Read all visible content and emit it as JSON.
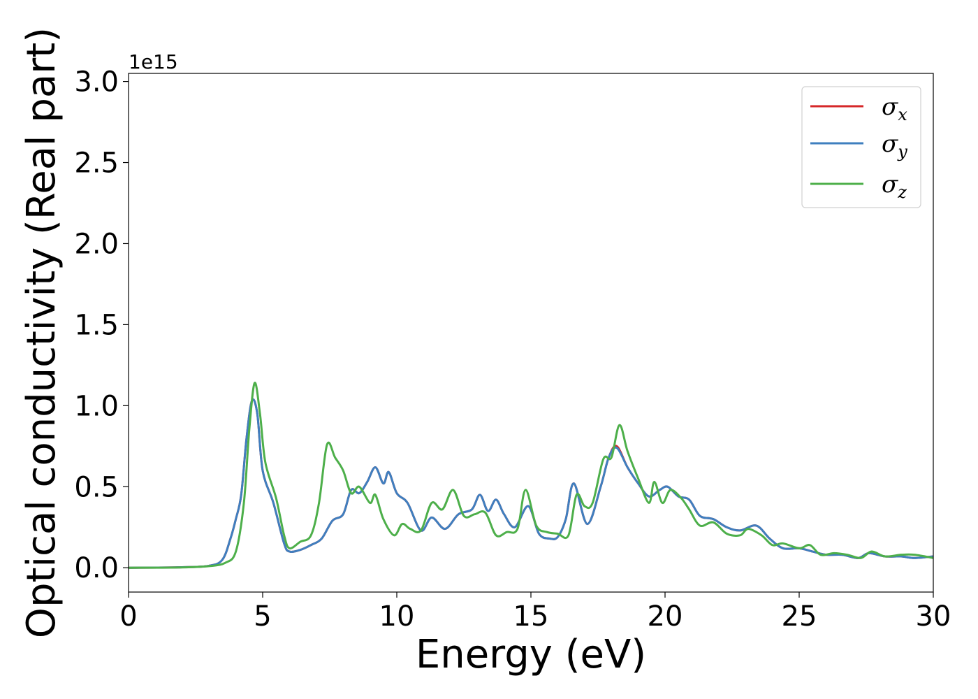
{
  "chart_data": {
    "type": "line",
    "title": "",
    "xlabel": "Energy (eV)",
    "ylabel": "Optical conductivity (Real part)",
    "y_offset_label": "1e15",
    "xlim": [
      0,
      30
    ],
    "ylim": [
      -0.15,
      3.05
    ],
    "xticks": [
      0,
      5,
      10,
      15,
      20,
      25,
      30
    ],
    "xtick_labels": [
      "0",
      "5",
      "10",
      "15",
      "20",
      "25",
      "30"
    ],
    "yticks": [
      0.0,
      0.5,
      1.0,
      1.5,
      2.0,
      2.5,
      3.0
    ],
    "ytick_labels": [
      "0.0",
      "0.5",
      "1.0",
      "1.5",
      "2.0",
      "2.5",
      "3.0"
    ],
    "grid": false,
    "legend_position": "top-right",
    "series": [
      {
        "name_base": "σ",
        "name_sub": "x",
        "color": "#d62728",
        "points": [
          [
            0,
            0
          ],
          [
            2,
            0.003
          ],
          [
            3,
            0.012
          ],
          [
            3.5,
            0.05
          ],
          [
            3.8,
            0.18
          ],
          [
            4.0,
            0.3
          ],
          [
            4.2,
            0.45
          ],
          [
            4.4,
            0.8
          ],
          [
            4.6,
            1.03
          ],
          [
            4.8,
            0.95
          ],
          [
            5.0,
            0.6
          ],
          [
            5.4,
            0.4
          ],
          [
            5.8,
            0.15
          ],
          [
            6.0,
            0.1
          ],
          [
            6.4,
            0.11
          ],
          [
            6.8,
            0.14
          ],
          [
            7.2,
            0.18
          ],
          [
            7.6,
            0.29
          ],
          [
            8.0,
            0.33
          ],
          [
            8.3,
            0.48
          ],
          [
            8.6,
            0.46
          ],
          [
            8.9,
            0.53
          ],
          [
            9.2,
            0.62
          ],
          [
            9.5,
            0.52
          ],
          [
            9.7,
            0.59
          ],
          [
            10.0,
            0.46
          ],
          [
            10.4,
            0.4
          ],
          [
            10.9,
            0.23
          ],
          [
            11.3,
            0.31
          ],
          [
            11.8,
            0.24
          ],
          [
            12.3,
            0.33
          ],
          [
            12.8,
            0.36
          ],
          [
            13.1,
            0.45
          ],
          [
            13.4,
            0.35
          ],
          [
            13.7,
            0.42
          ],
          [
            14.0,
            0.33
          ],
          [
            14.4,
            0.25
          ],
          [
            14.9,
            0.38
          ],
          [
            15.3,
            0.21
          ],
          [
            15.7,
            0.18
          ],
          [
            16.0,
            0.19
          ],
          [
            16.3,
            0.3
          ],
          [
            16.6,
            0.52
          ],
          [
            17.1,
            0.27
          ],
          [
            17.6,
            0.5
          ],
          [
            17.9,
            0.68
          ],
          [
            18.2,
            0.75
          ],
          [
            18.6,
            0.62
          ],
          [
            19.0,
            0.52
          ],
          [
            19.4,
            0.44
          ],
          [
            19.8,
            0.48
          ],
          [
            20.1,
            0.5
          ],
          [
            20.5,
            0.44
          ],
          [
            20.9,
            0.42
          ],
          [
            21.3,
            0.32
          ],
          [
            21.8,
            0.3
          ],
          [
            22.3,
            0.25
          ],
          [
            22.8,
            0.23
          ],
          [
            23.4,
            0.26
          ],
          [
            23.9,
            0.18
          ],
          [
            24.4,
            0.12
          ],
          [
            25.0,
            0.12
          ],
          [
            25.5,
            0.1
          ],
          [
            26.0,
            0.08
          ],
          [
            26.6,
            0.08
          ],
          [
            27.2,
            0.06
          ],
          [
            27.6,
            0.09
          ],
          [
            28.2,
            0.07
          ],
          [
            28.8,
            0.07
          ],
          [
            29.3,
            0.06
          ],
          [
            30,
            0.07
          ]
        ]
      },
      {
        "name_base": "σ",
        "name_sub": "y",
        "color": "#3f7fbf",
        "points": [
          [
            0,
            0
          ],
          [
            2,
            0.003
          ],
          [
            3,
            0.012
          ],
          [
            3.5,
            0.05
          ],
          [
            3.8,
            0.18
          ],
          [
            4.0,
            0.3
          ],
          [
            4.2,
            0.45
          ],
          [
            4.4,
            0.8
          ],
          [
            4.6,
            1.03
          ],
          [
            4.8,
            0.95
          ],
          [
            5.0,
            0.6
          ],
          [
            5.4,
            0.4
          ],
          [
            5.8,
            0.15
          ],
          [
            6.0,
            0.1
          ],
          [
            6.4,
            0.11
          ],
          [
            6.8,
            0.14
          ],
          [
            7.2,
            0.18
          ],
          [
            7.6,
            0.29
          ],
          [
            8.0,
            0.33
          ],
          [
            8.3,
            0.48
          ],
          [
            8.6,
            0.46
          ],
          [
            8.9,
            0.53
          ],
          [
            9.2,
            0.62
          ],
          [
            9.5,
            0.52
          ],
          [
            9.7,
            0.59
          ],
          [
            10.0,
            0.46
          ],
          [
            10.4,
            0.4
          ],
          [
            10.9,
            0.23
          ],
          [
            11.3,
            0.31
          ],
          [
            11.8,
            0.24
          ],
          [
            12.3,
            0.33
          ],
          [
            12.8,
            0.36
          ],
          [
            13.1,
            0.45
          ],
          [
            13.4,
            0.35
          ],
          [
            13.7,
            0.42
          ],
          [
            14.0,
            0.33
          ],
          [
            14.4,
            0.25
          ],
          [
            14.9,
            0.38
          ],
          [
            15.3,
            0.21
          ],
          [
            15.7,
            0.18
          ],
          [
            16.0,
            0.19
          ],
          [
            16.3,
            0.3
          ],
          [
            16.6,
            0.52
          ],
          [
            17.1,
            0.27
          ],
          [
            17.6,
            0.5
          ],
          [
            17.9,
            0.68
          ],
          [
            18.2,
            0.74
          ],
          [
            18.6,
            0.62
          ],
          [
            19.0,
            0.52
          ],
          [
            19.4,
            0.44
          ],
          [
            19.8,
            0.48
          ],
          [
            20.1,
            0.5
          ],
          [
            20.5,
            0.44
          ],
          [
            20.9,
            0.42
          ],
          [
            21.3,
            0.32
          ],
          [
            21.8,
            0.3
          ],
          [
            22.3,
            0.25
          ],
          [
            22.8,
            0.23
          ],
          [
            23.4,
            0.26
          ],
          [
            23.9,
            0.18
          ],
          [
            24.4,
            0.12
          ],
          [
            25.0,
            0.12
          ],
          [
            25.5,
            0.1
          ],
          [
            26.0,
            0.08
          ],
          [
            26.6,
            0.08
          ],
          [
            27.2,
            0.06
          ],
          [
            27.6,
            0.09
          ],
          [
            28.2,
            0.07
          ],
          [
            28.8,
            0.07
          ],
          [
            29.3,
            0.06
          ],
          [
            30,
            0.07
          ]
        ]
      },
      {
        "name_base": "σ",
        "name_sub": "z",
        "color": "#4daf4a",
        "points": [
          [
            0,
            0
          ],
          [
            2,
            0.002
          ],
          [
            3,
            0.01
          ],
          [
            3.6,
            0.03
          ],
          [
            4.0,
            0.1
          ],
          [
            4.3,
            0.4
          ],
          [
            4.5,
            0.85
          ],
          [
            4.7,
            1.14
          ],
          [
            4.9,
            0.95
          ],
          [
            5.1,
            0.65
          ],
          [
            5.5,
            0.43
          ],
          [
            5.8,
            0.2
          ],
          [
            6.0,
            0.12
          ],
          [
            6.4,
            0.16
          ],
          [
            6.8,
            0.2
          ],
          [
            7.1,
            0.4
          ],
          [
            7.4,
            0.76
          ],
          [
            7.7,
            0.68
          ],
          [
            8.0,
            0.6
          ],
          [
            8.3,
            0.46
          ],
          [
            8.6,
            0.5
          ],
          [
            9.0,
            0.4
          ],
          [
            9.2,
            0.45
          ],
          [
            9.5,
            0.3
          ],
          [
            9.9,
            0.2
          ],
          [
            10.2,
            0.27
          ],
          [
            10.5,
            0.24
          ],
          [
            10.9,
            0.23
          ],
          [
            11.3,
            0.4
          ],
          [
            11.7,
            0.36
          ],
          [
            12.1,
            0.48
          ],
          [
            12.5,
            0.32
          ],
          [
            12.9,
            0.33
          ],
          [
            13.3,
            0.34
          ],
          [
            13.7,
            0.2
          ],
          [
            14.1,
            0.22
          ],
          [
            14.5,
            0.24
          ],
          [
            14.8,
            0.48
          ],
          [
            15.2,
            0.26
          ],
          [
            15.6,
            0.22
          ],
          [
            16.0,
            0.21
          ],
          [
            16.4,
            0.2
          ],
          [
            16.7,
            0.45
          ],
          [
            17.0,
            0.38
          ],
          [
            17.3,
            0.4
          ],
          [
            17.7,
            0.67
          ],
          [
            18.0,
            0.68
          ],
          [
            18.3,
            0.88
          ],
          [
            18.6,
            0.72
          ],
          [
            19.0,
            0.55
          ],
          [
            19.4,
            0.4
          ],
          [
            19.6,
            0.53
          ],
          [
            19.9,
            0.4
          ],
          [
            20.2,
            0.48
          ],
          [
            20.6,
            0.43
          ],
          [
            20.9,
            0.36
          ],
          [
            21.3,
            0.26
          ],
          [
            21.8,
            0.28
          ],
          [
            22.3,
            0.21
          ],
          [
            22.8,
            0.2
          ],
          [
            23.1,
            0.24
          ],
          [
            23.6,
            0.2
          ],
          [
            24.0,
            0.14
          ],
          [
            24.4,
            0.15
          ],
          [
            25.0,
            0.12
          ],
          [
            25.4,
            0.14
          ],
          [
            25.8,
            0.08
          ],
          [
            26.3,
            0.09
          ],
          [
            26.8,
            0.08
          ],
          [
            27.3,
            0.06
          ],
          [
            27.7,
            0.1
          ],
          [
            28.2,
            0.07
          ],
          [
            28.8,
            0.08
          ],
          [
            29.3,
            0.08
          ],
          [
            30,
            0.06
          ]
        ]
      }
    ]
  }
}
